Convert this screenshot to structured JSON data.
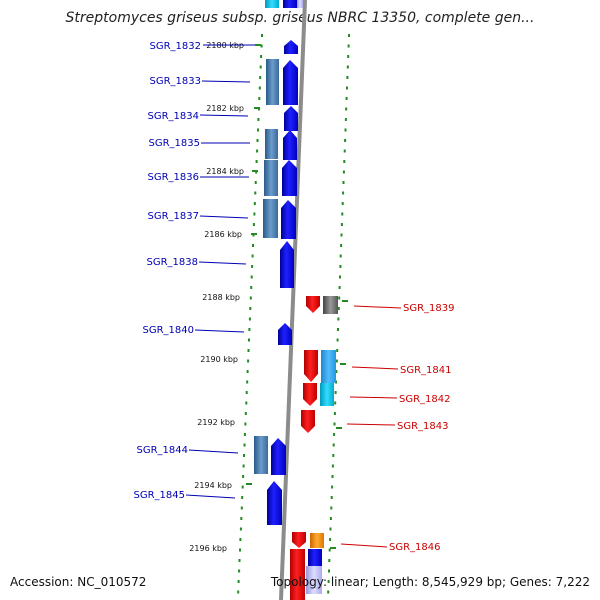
{
  "title": "Streptomyces griseus subsp. griseus NBRC 13350, complete gen...",
  "footer": {
    "accession": "Accession: NC_010572",
    "topology": "Topology: linear; Length: 8,545,929 bp; Genes: 7,222"
  },
  "colors": {
    "left_label": "#0000b3",
    "right_label": "#cc0000",
    "tick": "#228b22",
    "backbone": "#8c8c8c"
  },
  "kbp_labels": [
    "2180 kbp",
    "2182 kbp",
    "2184 kbp",
    "2186 kbp",
    "2188 kbp",
    "2190 kbp",
    "2192 kbp",
    "2194 kbp",
    "2196 kbp"
  ],
  "left_genes": [
    "SGR_1832",
    "SGR_1833",
    "SGR_1834",
    "SGR_1835",
    "SGR_1836",
    "SGR_1837",
    "SGR_1838",
    "SGR_1840",
    "SGR_1844",
    "SGR_1845"
  ],
  "right_genes": [
    "SGR_1839",
    "SGR_1841",
    "SGR_1842",
    "SGR_1843",
    "SGR_1846"
  ]
}
